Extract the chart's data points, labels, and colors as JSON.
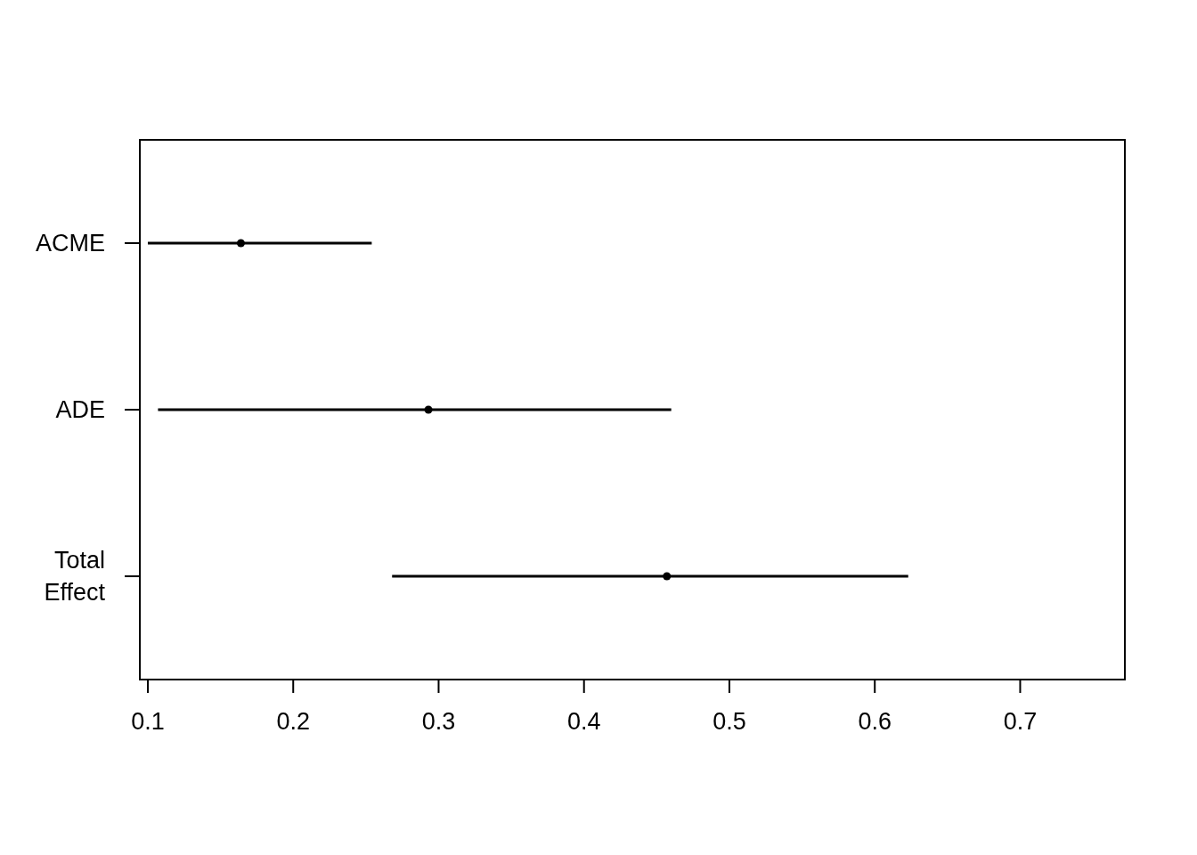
{
  "chart_data": {
    "type": "scatter",
    "orientation": "horizontal",
    "categories": [
      "ACME",
      "ADE",
      "Total Effect"
    ],
    "values": [
      0.164,
      0.293,
      0.457
    ],
    "errors": [
      [
        0.1,
        0.254
      ],
      [
        0.107,
        0.46
      ],
      [
        0.268,
        0.623
      ]
    ],
    "color": "#000000",
    "marker": "circle",
    "xlim": [
      0.0945,
      0.772
    ],
    "xticks": [
      0.1,
      0.2,
      0.3,
      0.4,
      0.5,
      0.6,
      0.7
    ],
    "grid": false,
    "legend": false
  }
}
